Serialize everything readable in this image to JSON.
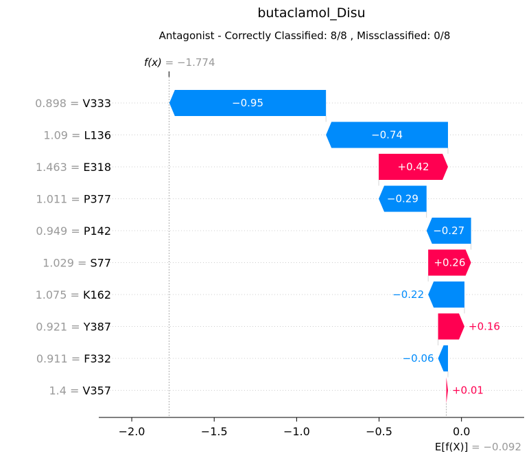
{
  "chart_data": {
    "type": "waterfall",
    "title": "butaclamol_Disu",
    "subtitle": "Antagonist - Correctly Classified: 8/8 , Missclassified: 0/8",
    "fx": {
      "label": "f(x)",
      "equals": " = ",
      "value": -1.774,
      "value_text": "−1.774"
    },
    "efx": {
      "label": "E[f(X)]",
      "equals": " = ",
      "value": -0.092,
      "value_text": "−0.092"
    },
    "xlim": [
      -2.2,
      0.38
    ],
    "xticks": [
      {
        "value": -2.0,
        "label": "−2.0"
      },
      {
        "value": -1.5,
        "label": "−1.5"
      },
      {
        "value": -1.0,
        "label": "−1.0"
      },
      {
        "value": -0.5,
        "label": "−0.5"
      },
      {
        "value": 0.0,
        "label": "0.0"
      }
    ],
    "features": [
      {
        "value_text": "0.898",
        "name": "V333",
        "shap": -0.95,
        "label": "−0.95"
      },
      {
        "value_text": "1.09",
        "name": "L136",
        "shap": -0.74,
        "label": "−0.74"
      },
      {
        "value_text": "1.463",
        "name": "E318",
        "shap": 0.42,
        "label": "+0.42"
      },
      {
        "value_text": "1.011",
        "name": "P377",
        "shap": -0.29,
        "label": "−0.29"
      },
      {
        "value_text": "0.949",
        "name": "P142",
        "shap": -0.27,
        "label": "−0.27"
      },
      {
        "value_text": "1.029",
        "name": "S77",
        "shap": 0.26,
        "label": "+0.26"
      },
      {
        "value_text": "1.075",
        "name": "K162",
        "shap": -0.22,
        "label": "−0.22"
      },
      {
        "value_text": "0.921",
        "name": "Y387",
        "shap": 0.16,
        "label": "+0.16"
      },
      {
        "value_text": "0.911",
        "name": "F332",
        "shap": -0.06,
        "label": "−0.06"
      },
      {
        "value_text": "1.4",
        "name": "V357",
        "shap": 0.01,
        "label": "+0.01"
      }
    ],
    "colors": {
      "positive": "#ff0051",
      "negative": "#008bfb",
      "muted": "#999999",
      "grid": "#cccccc"
    }
  }
}
